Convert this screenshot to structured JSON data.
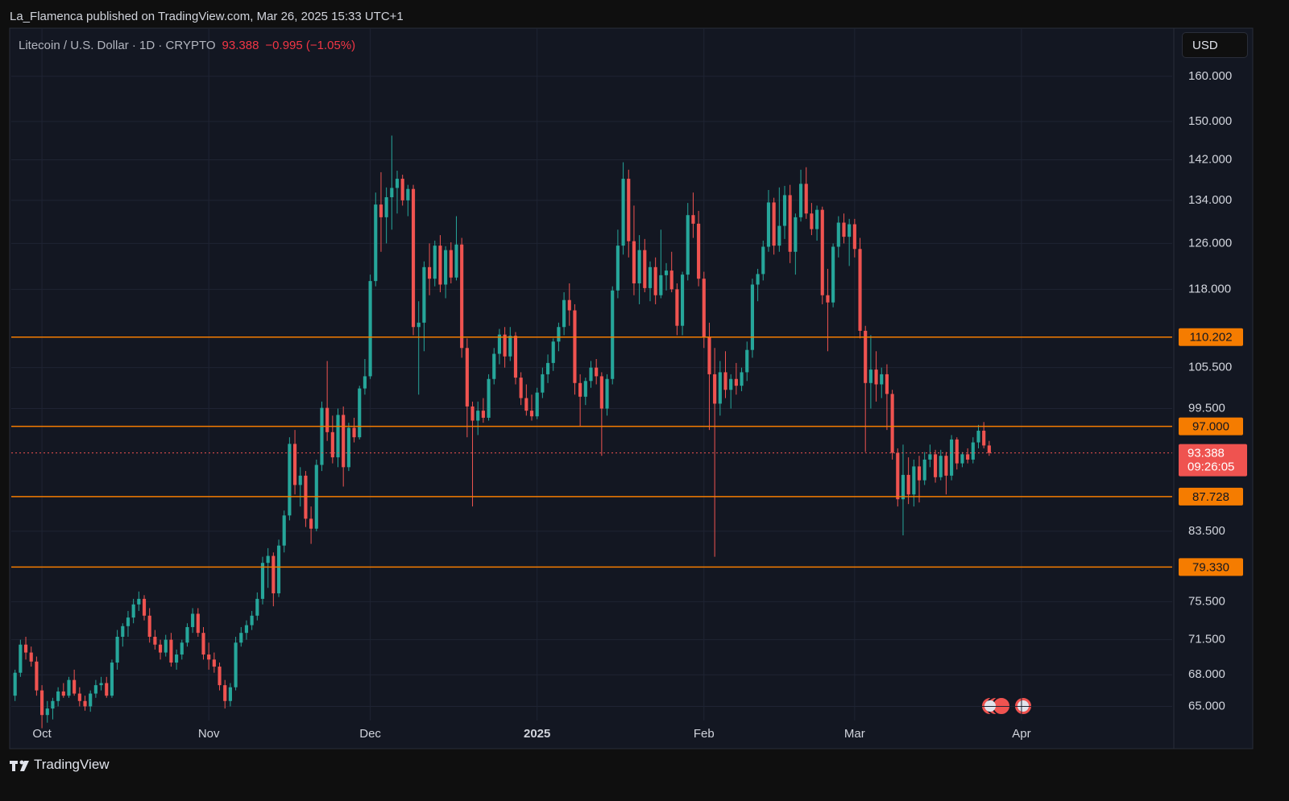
{
  "header": "La_Flamenca published on TradingView.com, Mar 26, 2025 15:33 UTC+1",
  "legend": {
    "symbol": "Litecoin / U.S. Dollar · 1D · CRYPTO",
    "change": "−0.995 (−1.05%)"
  },
  "currency": "USD",
  "brand": "TradingView",
  "chart_data": {
    "type": "candlestick",
    "log_scale": true,
    "grid": true,
    "up_color": "#26a69a",
    "down_color": "#ef5350",
    "level_color": "#f57c00",
    "xlim": [
      -0.7,
      215
    ],
    "xticks": [
      {
        "value": 5,
        "label": "Oct"
      },
      {
        "value": 36,
        "label": "Nov"
      },
      {
        "value": 66,
        "label": "Dec"
      },
      {
        "value": 97,
        "label": "2025"
      },
      {
        "value": 128,
        "label": "Feb"
      },
      {
        "value": 156,
        "label": "Mar"
      },
      {
        "value": 187,
        "label": "Apr"
      }
    ],
    "ylim": [
      63.7,
      171.4
    ],
    "yticks": [
      {
        "value": 160,
        "label": "160.000"
      },
      {
        "value": 150,
        "label": "150.000"
      },
      {
        "value": 142,
        "label": "142.000"
      },
      {
        "value": 134,
        "label": "134.000"
      },
      {
        "value": 126,
        "label": "126.000"
      },
      {
        "value": 118,
        "label": "118.000"
      },
      {
        "value": 105.5,
        "label": "105.500"
      },
      {
        "value": 99.5,
        "label": "99.500"
      },
      {
        "value": 83.5,
        "label": "83.500"
      },
      {
        "value": 75.5,
        "label": "75.500"
      },
      {
        "value": 71.5,
        "label": "71.500"
      },
      {
        "value": 68,
        "label": "68.000"
      },
      {
        "value": 65,
        "label": "65.000"
      }
    ],
    "levels": [
      {
        "value": 110.202,
        "label": "110.202"
      },
      {
        "value": 97,
        "label": "97.000"
      },
      {
        "value": 87.728,
        "label": "87.728"
      },
      {
        "value": 79.33,
        "label": "79.330"
      }
    ],
    "last": {
      "value": 93.388,
      "countdown": "09:26:05"
    },
    "ohlc": [
      [
        66.0,
        68.5,
        65.5,
        68.2
      ],
      [
        68.2,
        71.5,
        67.8,
        71.0
      ],
      [
        71.0,
        71.8,
        69.5,
        70.2
      ],
      [
        70.2,
        70.8,
        68.8,
        69.3
      ],
      [
        69.3,
        69.8,
        66.0,
        66.5
      ],
      [
        66.5,
        67.0,
        63.0,
        64.2
      ],
      [
        64.2,
        65.5,
        63.5,
        64.8
      ],
      [
        64.8,
        65.8,
        63.8,
        65.5
      ],
      [
        65.5,
        66.8,
        65.0,
        66.4
      ],
      [
        66.4,
        67.2,
        65.8,
        66.0
      ],
      [
        66.0,
        67.8,
        65.8,
        67.5
      ],
      [
        67.5,
        68.5,
        66.0,
        66.2
      ],
      [
        66.2,
        66.8,
        65.0,
        65.5
      ],
      [
        65.5,
        66.0,
        64.6,
        65.0
      ],
      [
        65.0,
        66.5,
        64.5,
        66.2
      ],
      [
        66.2,
        67.5,
        65.8,
        67.0
      ],
      [
        67.0,
        67.8,
        66.5,
        67.2
      ],
      [
        67.2,
        67.8,
        65.8,
        66.0
      ],
      [
        66.0,
        69.5,
        65.8,
        69.2
      ],
      [
        69.2,
        72.5,
        68.5,
        71.8
      ],
      [
        71.8,
        73.2,
        70.8,
        72.9
      ],
      [
        72.9,
        74.5,
        71.8,
        73.8
      ],
      [
        73.8,
        75.8,
        73.2,
        75.2
      ],
      [
        75.2,
        76.6,
        74.5,
        75.8
      ],
      [
        75.8,
        76.2,
        73.5,
        74.0
      ],
      [
        74.0,
        74.8,
        71.2,
        71.8
      ],
      [
        71.8,
        72.5,
        70.5,
        71.0
      ],
      [
        71.0,
        71.5,
        69.5,
        70.2
      ],
      [
        70.2,
        72.0,
        69.8,
        71.5
      ],
      [
        71.5,
        72.2,
        68.8,
        69.2
      ],
      [
        69.2,
        70.5,
        68.5,
        70.0
      ],
      [
        70.0,
        71.5,
        69.5,
        71.2
      ],
      [
        71.2,
        73.2,
        70.8,
        72.8
      ],
      [
        72.8,
        74.8,
        72.2,
        74.2
      ],
      [
        74.2,
        74.8,
        71.8,
        72.2
      ],
      [
        72.2,
        72.8,
        69.5,
        70.0
      ],
      [
        70.0,
        71.2,
        68.5,
        69.5
      ],
      [
        69.5,
        70.2,
        68.2,
        68.8
      ],
      [
        68.8,
        69.2,
        66.5,
        67.0
      ],
      [
        67.0,
        67.5,
        64.8,
        65.5
      ],
      [
        65.5,
        67.2,
        65.0,
        66.8
      ],
      [
        66.8,
        71.8,
        66.5,
        71.2
      ],
      [
        71.2,
        72.8,
        70.8,
        72.2
      ],
      [
        72.2,
        73.5,
        71.5,
        73.0
      ],
      [
        73.0,
        74.5,
        72.5,
        74.0
      ],
      [
        74.0,
        76.5,
        73.5,
        75.8
      ],
      [
        75.8,
        80.5,
        75.2,
        79.8
      ],
      [
        79.8,
        81.5,
        77.0,
        80.6
      ],
      [
        80.6,
        81.0,
        75.0,
        76.4
      ],
      [
        76.4,
        82.5,
        76.0,
        81.8
      ],
      [
        81.8,
        86.0,
        81.0,
        85.4
      ],
      [
        85.4,
        95.5,
        84.8,
        94.6
      ],
      [
        94.6,
        96.5,
        88.0,
        89.2
      ],
      [
        89.2,
        91.5,
        86.5,
        90.4
      ],
      [
        90.4,
        91.0,
        84.0,
        85.0
      ],
      [
        85.0,
        86.5,
        82.0,
        83.8
      ],
      [
        83.8,
        92.5,
        83.5,
        91.8
      ],
      [
        91.8,
        100.5,
        91.0,
        99.6
      ],
      [
        99.6,
        106.5,
        95.0,
        96.2
      ],
      [
        96.2,
        98.5,
        92.0,
        92.8
      ],
      [
        92.8,
        99.5,
        91.5,
        98.6
      ],
      [
        98.6,
        99.8,
        89.0,
        91.5
      ],
      [
        91.5,
        97.5,
        91.0,
        96.8
      ],
      [
        96.8,
        98.2,
        94.8,
        95.5
      ],
      [
        95.5,
        102.8,
        95.2,
        102.4
      ],
      [
        102.4,
        106.8,
        101.5,
        104.2
      ],
      [
        104.2,
        120.5,
        103.8,
        119.4
      ],
      [
        119.4,
        135.5,
        118.5,
        133.2
      ],
      [
        133.2,
        139.5,
        124.5,
        130.8
      ],
      [
        130.8,
        136.5,
        126.0,
        134.6
      ],
      [
        134.6,
        147.0,
        128.5,
        136.4
      ],
      [
        136.4,
        139.8,
        131.5,
        138.2
      ],
      [
        138.2,
        139.0,
        133.0,
        134.0
      ],
      [
        134.0,
        137.0,
        131.0,
        136.2
      ],
      [
        136.2,
        137.0,
        110.5,
        111.8
      ],
      [
        111.8,
        116.0,
        101.5,
        112.5
      ],
      [
        112.5,
        122.8,
        108.0,
        121.8
      ],
      [
        121.8,
        126.0,
        117.0,
        119.8
      ],
      [
        119.8,
        126.5,
        118.5,
        125.6
      ],
      [
        125.6,
        127.5,
        117.5,
        118.8
      ],
      [
        118.8,
        125.5,
        116.5,
        124.8
      ],
      [
        124.8,
        126.2,
        119.0,
        120.0
      ],
      [
        120.0,
        131.0,
        119.5,
        125.8
      ],
      [
        125.8,
        127.0,
        107.0,
        108.5
      ],
      [
        108.5,
        110.0,
        95.5,
        99.8
      ],
      [
        99.8,
        100.5,
        86.5,
        97.8
      ],
      [
        97.8,
        100.5,
        95.8,
        99.2
      ],
      [
        99.2,
        101.0,
        97.5,
        98.2
      ],
      [
        98.2,
        104.5,
        97.8,
        103.8
      ],
      [
        103.8,
        108.5,
        103.0,
        107.6
      ],
      [
        107.6,
        111.5,
        106.0,
        110.6
      ],
      [
        110.6,
        111.8,
        105.5,
        107.2
      ],
      [
        107.2,
        111.8,
        106.5,
        110.4
      ],
      [
        110.4,
        111.0,
        103.0,
        104.0
      ],
      [
        104.0,
        104.8,
        100.0,
        101.0
      ],
      [
        101.0,
        103.0,
        98.5,
        99.2
      ],
      [
        99.2,
        101.5,
        97.8,
        98.4
      ],
      [
        98.4,
        102.5,
        98.0,
        101.8
      ],
      [
        101.8,
        105.5,
        101.0,
        104.5
      ],
      [
        104.5,
        107.5,
        103.2,
        106.2
      ],
      [
        106.2,
        110.0,
        105.0,
        109.5
      ],
      [
        109.5,
        112.5,
        108.0,
        111.8
      ],
      [
        111.8,
        117.5,
        110.5,
        116.2
      ],
      [
        116.2,
        119.0,
        112.0,
        114.5
      ],
      [
        114.5,
        115.5,
        101.5,
        103.2
      ],
      [
        103.2,
        104.5,
        97.0,
        101.2
      ],
      [
        101.2,
        104.0,
        100.0,
        103.5
      ],
      [
        103.5,
        106.5,
        102.5,
        105.5
      ],
      [
        105.5,
        106.8,
        103.0,
        104.2
      ],
      [
        104.2,
        104.8,
        93.0,
        99.5
      ],
      [
        99.5,
        104.5,
        98.5,
        103.8
      ],
      [
        103.8,
        118.5,
        103.0,
        117.8
      ],
      [
        117.8,
        128.5,
        116.5,
        125.6
      ],
      [
        125.6,
        141.5,
        124.0,
        138.2
      ],
      [
        138.2,
        140.0,
        123.5,
        126.4
      ],
      [
        126.4,
        133.0,
        117.0,
        119.0
      ],
      [
        119.0,
        127.5,
        115.5,
        124.8
      ],
      [
        124.8,
        126.8,
        117.5,
        118.2
      ],
      [
        118.2,
        122.8,
        116.0,
        121.8
      ],
      [
        121.8,
        123.5,
        115.5,
        117.0
      ],
      [
        117.0,
        128.5,
        116.5,
        120.4
      ],
      [
        120.4,
        122.5,
        117.8,
        121.2
      ],
      [
        121.2,
        124.5,
        117.5,
        118.0
      ],
      [
        118.0,
        119.0,
        110.5,
        112.0
      ],
      [
        112.0,
        121.0,
        110.5,
        120.5
      ],
      [
        120.5,
        133.5,
        119.5,
        131.2
      ],
      [
        131.2,
        135.5,
        127.0,
        129.6
      ],
      [
        129.6,
        132.0,
        118.5,
        119.8
      ],
      [
        119.8,
        121.0,
        108.5,
        110.2
      ],
      [
        110.2,
        112.5,
        96.5,
        104.5
      ],
      [
        104.5,
        108.5,
        80.5,
        100.2
      ],
      [
        100.2,
        106.5,
        98.5,
        104.8
      ],
      [
        104.8,
        108.0,
        101.0,
        102.2
      ],
      [
        102.2,
        104.5,
        99.5,
        103.8
      ],
      [
        103.8,
        106.2,
        101.5,
        102.8
      ],
      [
        102.8,
        105.5,
        102.0,
        104.8
      ],
      [
        104.8,
        109.5,
        103.5,
        108.2
      ],
      [
        108.2,
        119.8,
        107.0,
        118.8
      ],
      [
        118.8,
        121.5,
        116.0,
        120.6
      ],
      [
        120.6,
        126.5,
        119.5,
        125.4
      ],
      [
        125.4,
        136.0,
        124.5,
        133.6
      ],
      [
        133.6,
        134.5,
        124.0,
        125.6
      ],
      [
        125.6,
        136.5,
        124.5,
        129.2
      ],
      [
        129.2,
        136.8,
        126.8,
        135.0
      ],
      [
        135.0,
        137.0,
        122.5,
        124.5
      ],
      [
        124.5,
        131.5,
        120.5,
        130.8
      ],
      [
        130.8,
        140.0,
        130.0,
        137.2
      ],
      [
        137.2,
        140.5,
        130.5,
        131.5
      ],
      [
        131.5,
        133.5,
        127.5,
        128.6
      ],
      [
        128.6,
        133.0,
        126.5,
        132.2
      ],
      [
        132.2,
        132.8,
        115.5,
        117.0
      ],
      [
        117.0,
        121.5,
        108.0,
        115.8
      ],
      [
        115.8,
        126.0,
        115.0,
        125.4
      ],
      [
        125.4,
        131.0,
        123.5,
        129.8
      ],
      [
        129.8,
        131.5,
        126.0,
        127.2
      ],
      [
        127.2,
        130.5,
        122.0,
        129.5
      ],
      [
        129.5,
        130.5,
        123.5,
        125.0
      ],
      [
        125.0,
        127.0,
        110.0,
        111.2
      ],
      [
        111.2,
        112.0,
        93.5,
        103.2
      ],
      [
        103.2,
        110.5,
        99.5,
        105.2
      ],
      [
        105.2,
        108.0,
        100.5,
        103.0
      ],
      [
        103.0,
        105.5,
        101.0,
        104.5
      ],
      [
        104.5,
        106.0,
        96.5,
        101.6
      ],
      [
        101.6,
        102.2,
        92.5,
        93.4
      ],
      [
        93.4,
        94.0,
        86.5,
        87.4
      ],
      [
        87.4,
        94.5,
        83.0,
        90.5
      ],
      [
        90.5,
        92.8,
        86.8,
        88.0
      ],
      [
        88.0,
        92.5,
        86.5,
        91.6
      ],
      [
        91.6,
        93.0,
        87.0,
        89.8
      ],
      [
        89.8,
        93.5,
        89.2,
        92.5
      ],
      [
        92.5,
        94.5,
        91.5,
        93.2
      ],
      [
        93.2,
        93.8,
        89.5,
        90.2
      ],
      [
        90.2,
        93.8,
        89.8,
        93.0
      ],
      [
        93.0,
        93.5,
        88.0,
        90.4
      ],
      [
        90.4,
        95.8,
        89.8,
        95.2
      ],
      [
        95.2,
        95.5,
        91.2,
        92.0
      ],
      [
        92.0,
        93.5,
        91.5,
        93.2
      ],
      [
        93.2,
        94.0,
        92.0,
        92.5
      ],
      [
        92.5,
        95.5,
        92.0,
        94.8
      ],
      [
        94.8,
        97.2,
        94.0,
        96.4
      ],
      [
        96.4,
        97.6,
        94.0,
        94.383
      ],
      [
        94.383,
        95.0,
        93.0,
        93.388
      ]
    ]
  }
}
